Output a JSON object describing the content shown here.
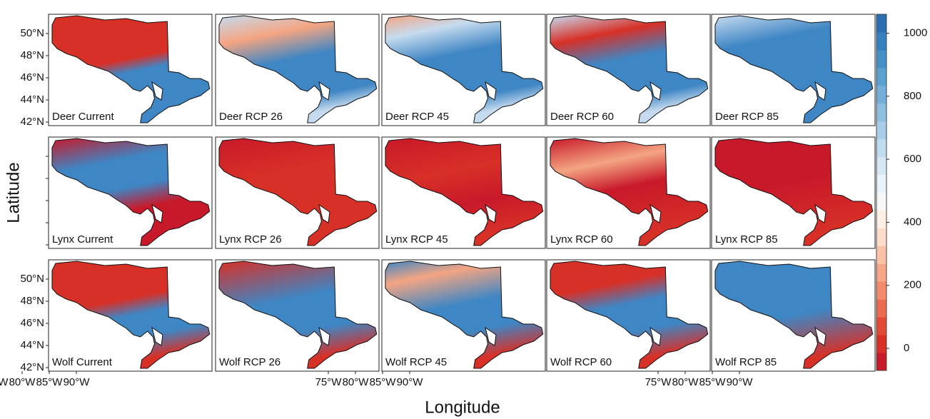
{
  "x_label": "Longitude",
  "y_label": "Latitude",
  "lat_ticks": [
    {
      "value": 50,
      "label": "50°N"
    },
    {
      "value": 48,
      "label": "48°N"
    },
    {
      "value": 46,
      "label": "46°N"
    },
    {
      "value": 44,
      "label": "44°N"
    },
    {
      "value": 42,
      "label": "42°N"
    }
  ],
  "lon_ticks": [
    {
      "value": -90,
      "label": "90°W"
    },
    {
      "value": -85,
      "label": "85°W"
    },
    {
      "value": -80,
      "label": "80°W"
    },
    {
      "value": -75,
      "label": "75°W"
    }
  ],
  "panels": [
    [
      "Deer Current",
      "Deer RCP 26",
      "Deer RCP 45",
      "Deer RCP 60",
      "Deer RCP 85"
    ],
    [
      "Lynx Current",
      "Lynx RCP 26",
      "Lynx RCP 45",
      "Lynx RCP 60",
      "Lynx RCP 85"
    ],
    [
      "Wolf Current",
      "Wolf RCP 26",
      "Wolf RCP 45",
      "Wolf RCP 60",
      "Wolf RCP 85"
    ]
  ],
  "colorbar": {
    "lim": [
      -70,
      1060
    ],
    "ticks": [
      0,
      200,
      400,
      600,
      800,
      1000
    ]
  }
}
